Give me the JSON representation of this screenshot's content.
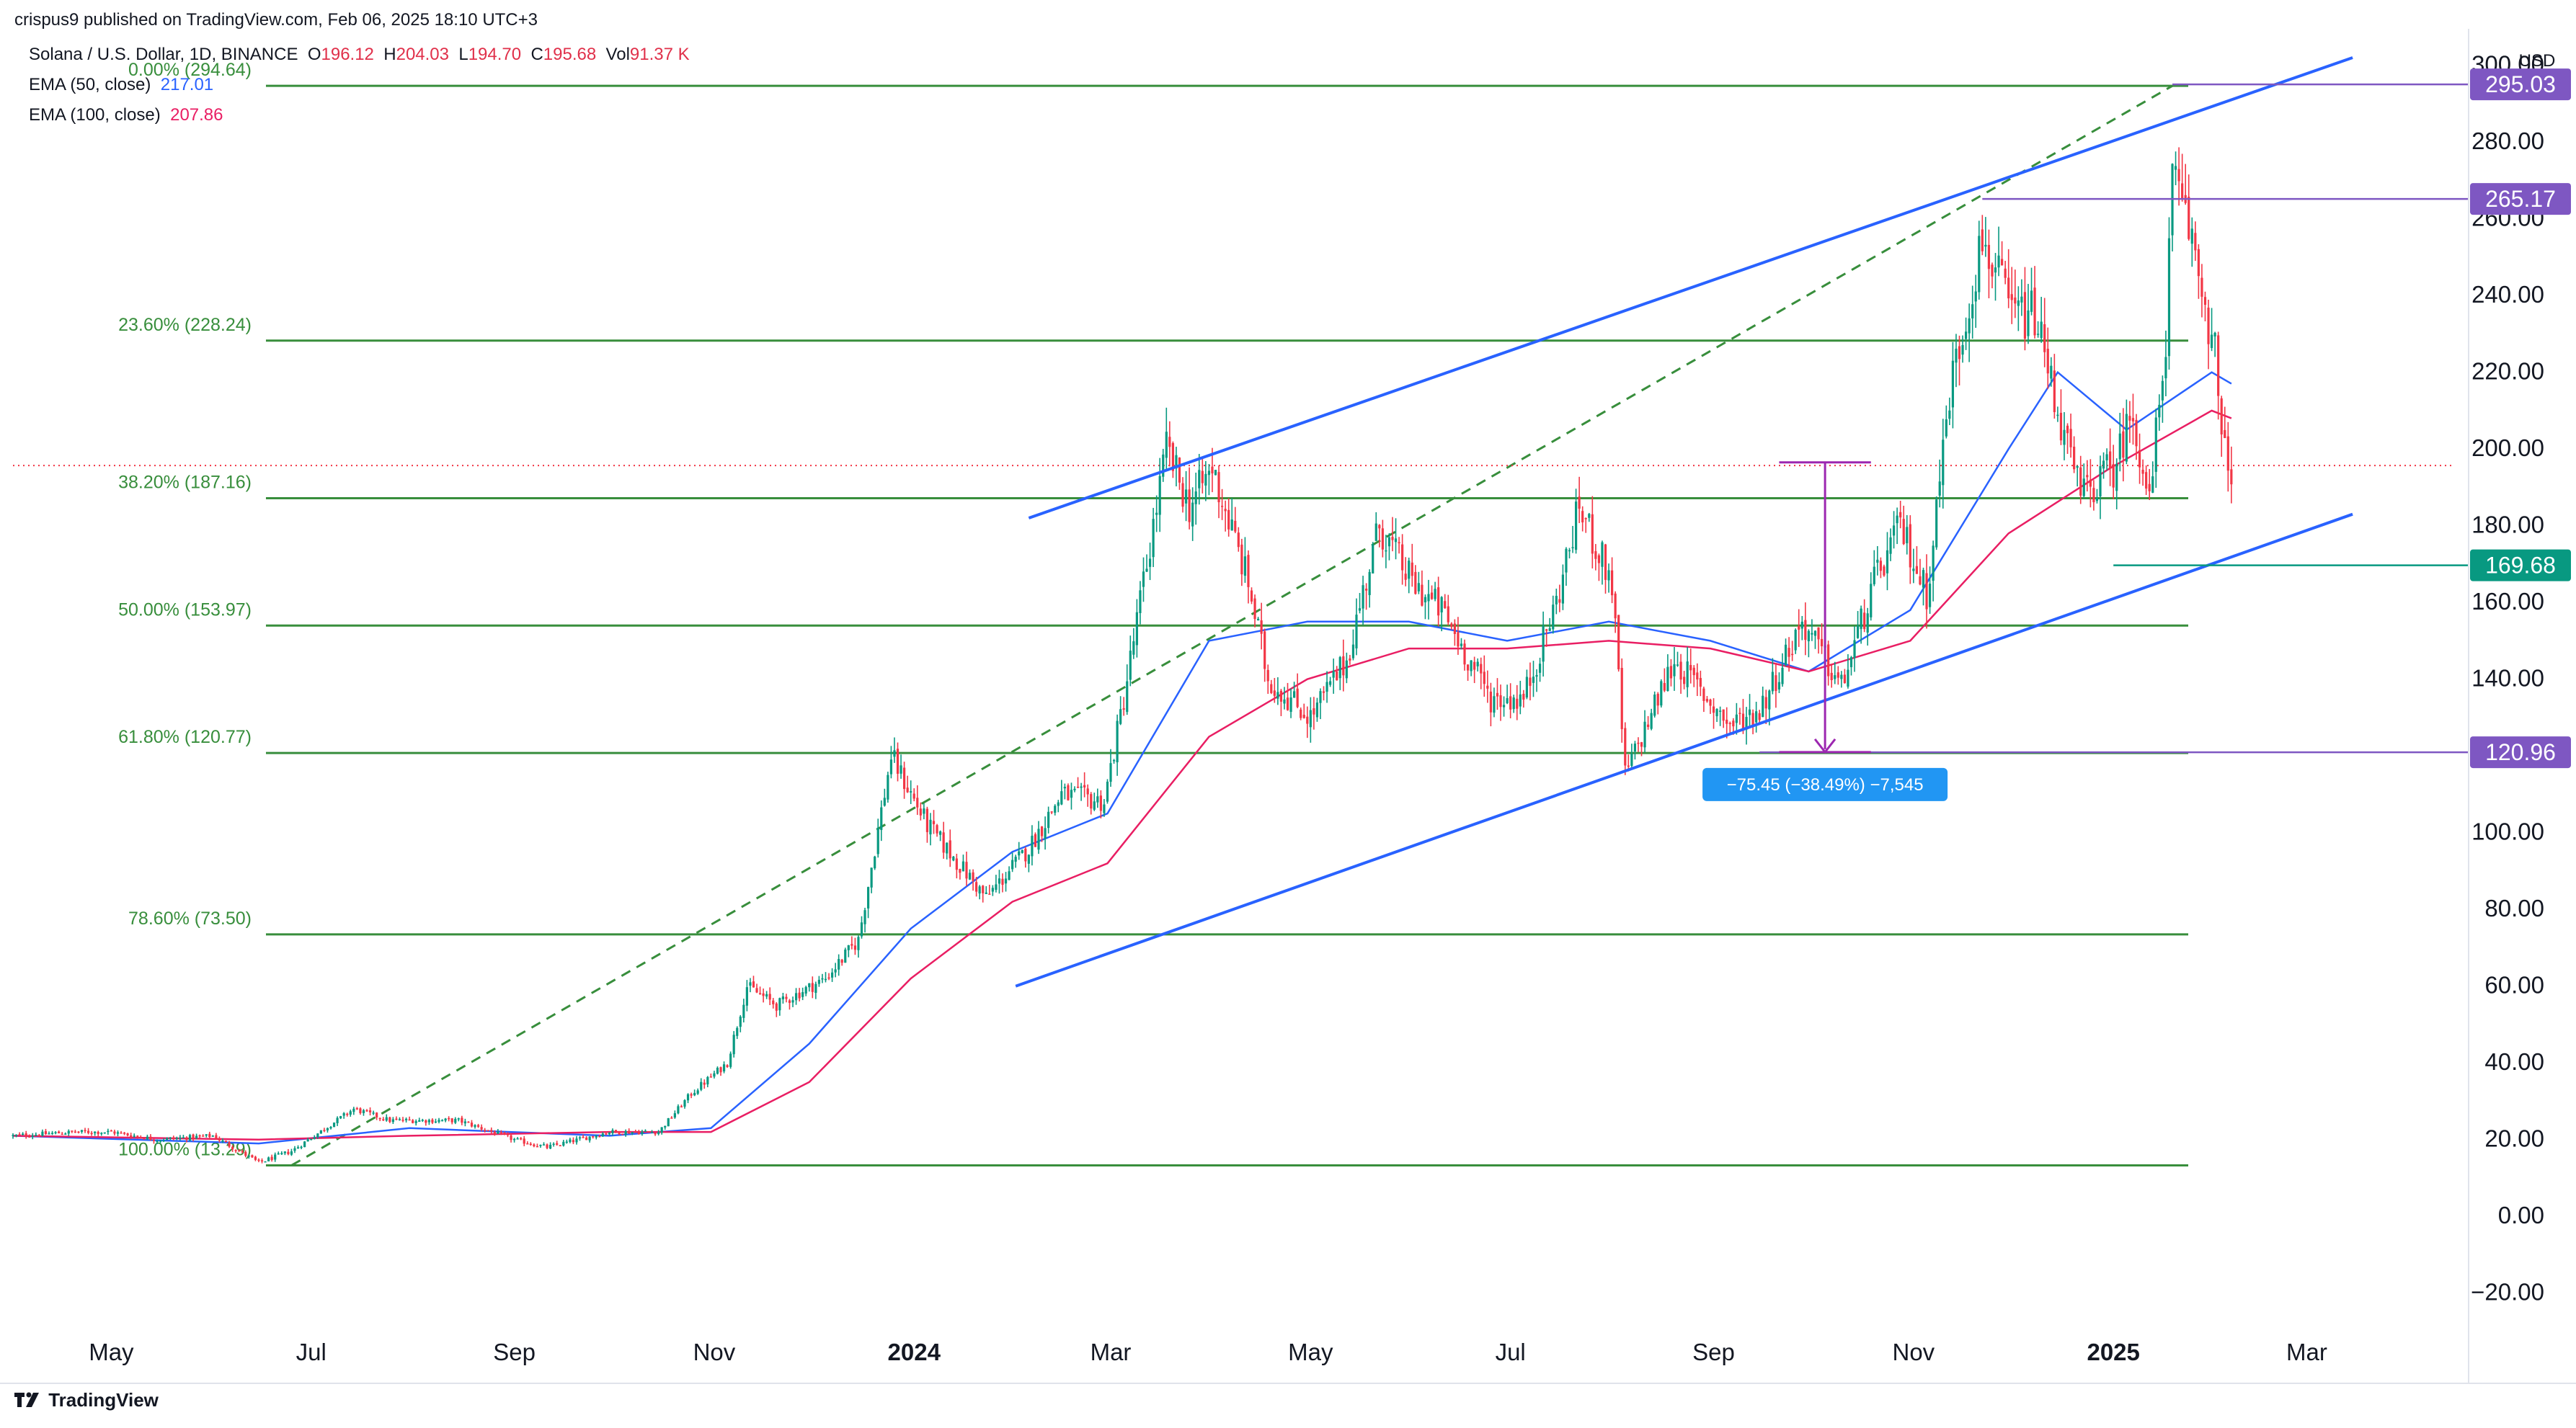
{
  "header": {
    "published": "crispus9 published on TradingView.com, Feb 06, 2025 18:10 UTC+3"
  },
  "legend": {
    "symbol": "Solana / U.S. Dollar, 1D, BINANCE",
    "o_label": "O",
    "o_val": "196.12",
    "h_label": "H",
    "h_val": "204.03",
    "l_label": "L",
    "l_val": "194.70",
    "c_label": "C",
    "c_val": "195.68",
    "vol_label": "Vol",
    "vol_val": "91.37 K",
    "ema50_label": "EMA (50, close)",
    "ema50_val": "217.01",
    "ema100_label": "EMA (100, close)",
    "ema100_val": "207.86"
  },
  "footer": {
    "brand": "TradingView"
  },
  "colors": {
    "up": "#089981",
    "down": "#f23645",
    "fib": "#388e3c",
    "channel": "#2962ff",
    "ema50": "#2962ff",
    "ema100": "#e91e63",
    "purple": "#7e57c2",
    "teal": "#089981",
    "measure": "#2196f3"
  },
  "chart_data": {
    "type": "candlestick",
    "title": "Solana / U.S. Dollar, 1D, BINANCE",
    "currency": "USD",
    "y_ticks": [
      "300.00",
      "280.00",
      "260.00",
      "240.00",
      "220.00",
      "200.00",
      "180.00",
      "160.00",
      "140.00",
      "120.00",
      "100.00",
      "80.00",
      "60.00",
      "40.00",
      "20.00",
      "0.00",
      "−20.00"
    ],
    "x_ticks": [
      {
        "label": "May",
        "bold": false
      },
      {
        "label": "Jul",
        "bold": false
      },
      {
        "label": "Sep",
        "bold": false
      },
      {
        "label": "Nov",
        "bold": false
      },
      {
        "label": "2024",
        "bold": true
      },
      {
        "label": "Mar",
        "bold": false
      },
      {
        "label": "May",
        "bold": false
      },
      {
        "label": "Jul",
        "bold": false
      },
      {
        "label": "Sep",
        "bold": false
      },
      {
        "label": "Nov",
        "bold": false
      },
      {
        "label": "2025",
        "bold": true
      },
      {
        "label": "Mar",
        "bold": false
      }
    ],
    "ylim": [
      -30,
      305
    ],
    "price_path": [
      [
        "2023-04-01",
        21
      ],
      [
        "2023-04-20",
        22
      ],
      [
        "2023-05-01",
        22
      ],
      [
        "2023-05-15",
        20
      ],
      [
        "2023-06-01",
        21
      ],
      [
        "2023-06-15",
        14
      ],
      [
        "2023-06-25",
        17
      ],
      [
        "2023-07-14",
        28
      ],
      [
        "2023-07-25",
        25
      ],
      [
        "2023-08-15",
        25
      ],
      [
        "2023-09-01",
        20
      ],
      [
        "2023-09-11",
        18
      ],
      [
        "2023-09-30",
        22
      ],
      [
        "2023-10-15",
        22
      ],
      [
        "2023-10-25",
        32
      ],
      [
        "2023-11-05",
        40
      ],
      [
        "2023-11-11",
        60
      ],
      [
        "2023-11-20",
        55
      ],
      [
        "2023-12-05",
        62
      ],
      [
        "2023-12-15",
        72
      ],
      [
        "2023-12-25",
        120
      ],
      [
        "2024-01-05",
        102
      ],
      [
        "2024-01-23",
        83
      ],
      [
        "2024-02-05",
        96
      ],
      [
        "2024-02-15",
        110
      ],
      [
        "2024-02-28",
        108
      ],
      [
        "2024-03-05",
        135
      ],
      [
        "2024-03-12",
        170
      ],
      [
        "2024-03-18",
        200
      ],
      [
        "2024-03-25",
        185
      ],
      [
        "2024-04-01",
        195
      ],
      [
        "2024-04-12",
        165
      ],
      [
        "2024-04-18",
        140
      ],
      [
        "2024-05-01",
        130
      ],
      [
        "2024-05-12",
        145
      ],
      [
        "2024-05-22",
        180
      ],
      [
        "2024-06-01",
        165
      ],
      [
        "2024-06-10",
        158
      ],
      [
        "2024-06-25",
        135
      ],
      [
        "2024-07-05",
        135
      ],
      [
        "2024-07-15",
        160
      ],
      [
        "2024-07-22",
        185
      ],
      [
        "2024-08-01",
        165
      ],
      [
        "2024-08-05",
        115
      ],
      [
        "2024-08-20",
        145
      ],
      [
        "2024-09-06",
        128
      ],
      [
        "2024-09-15",
        132
      ],
      [
        "2024-09-28",
        155
      ],
      [
        "2024-10-10",
        138
      ],
      [
        "2024-10-20",
        165
      ],
      [
        "2024-10-28",
        180
      ],
      [
        "2024-11-05",
        162
      ],
      [
        "2024-11-12",
        215
      ],
      [
        "2024-11-22",
        255
      ],
      [
        "2024-12-01",
        235
      ],
      [
        "2024-12-08",
        235
      ],
      [
        "2024-12-18",
        200
      ],
      [
        "2024-12-22",
        188
      ],
      [
        "2025-01-01",
        195
      ],
      [
        "2025-01-07",
        210
      ],
      [
        "2025-01-12",
        185
      ],
      [
        "2025-01-17",
        230
      ],
      [
        "2025-01-19",
        270
      ],
      [
        "2025-01-25",
        255
      ],
      [
        "2025-02-01",
        225
      ],
      [
        "2025-02-03",
        200
      ],
      [
        "2025-02-06",
        196
      ]
    ],
    "ema50": [
      [
        "2023-04-01",
        21
      ],
      [
        "2023-06-15",
        19
      ],
      [
        "2023-07-31",
        23
      ],
      [
        "2023-09-30",
        21
      ],
      [
        "2023-10-31",
        23
      ],
      [
        "2023-11-30",
        45
      ],
      [
        "2023-12-31",
        75
      ],
      [
        "2024-01-31",
        95
      ],
      [
        "2024-02-29",
        105
      ],
      [
        "2024-03-31",
        150
      ],
      [
        "2024-04-30",
        155
      ],
      [
        "2024-05-31",
        155
      ],
      [
        "2024-06-30",
        150
      ],
      [
        "2024-07-31",
        155
      ],
      [
        "2024-08-31",
        150
      ],
      [
        "2024-09-30",
        142
      ],
      [
        "2024-10-31",
        158
      ],
      [
        "2024-11-30",
        200
      ],
      [
        "2024-12-15",
        220
      ],
      [
        "2025-01-05",
        205
      ],
      [
        "2025-01-31",
        220
      ],
      [
        "2025-02-06",
        217
      ]
    ],
    "ema100": [
      [
        "2023-04-01",
        21
      ],
      [
        "2023-06-15",
        20
      ],
      [
        "2023-07-31",
        21
      ],
      [
        "2023-09-30",
        22
      ],
      [
        "2023-10-31",
        22
      ],
      [
        "2023-11-30",
        35
      ],
      [
        "2023-12-31",
        62
      ],
      [
        "2024-01-31",
        82
      ],
      [
        "2024-02-29",
        92
      ],
      [
        "2024-03-31",
        125
      ],
      [
        "2024-04-30",
        140
      ],
      [
        "2024-05-31",
        148
      ],
      [
        "2024-06-30",
        148
      ],
      [
        "2024-07-31",
        150
      ],
      [
        "2024-08-31",
        148
      ],
      [
        "2024-09-30",
        142
      ],
      [
        "2024-10-31",
        150
      ],
      [
        "2024-11-30",
        178
      ],
      [
        "2024-12-31",
        195
      ],
      [
        "2025-01-31",
        210
      ],
      [
        "2025-02-06",
        208
      ]
    ],
    "fib_levels": [
      {
        "label": "0.00% (294.64)",
        "value": 294.64
      },
      {
        "label": "23.60% (228.24)",
        "value": 228.24
      },
      {
        "label": "38.20% (187.16)",
        "value": 187.16
      },
      {
        "label": "50.00% (153.97)",
        "value": 153.97
      },
      {
        "label": "61.80% (120.77)",
        "value": 120.77
      },
      {
        "label": "78.60% (73.50)",
        "value": 73.5
      },
      {
        "label": "100.00% (13.29)",
        "value": 13.29
      }
    ],
    "fib_range": {
      "start": "2023-06-15",
      "end": "2025-01-19"
    },
    "fib_trend": {
      "from": [
        "2023-06-25",
        13.29
      ],
      "to": [
        "2025-01-19",
        294.64
      ]
    },
    "channel_upper": {
      "from": [
        "2024-02-05",
        182
      ],
      "to": [
        "2025-03-15",
        302
      ]
    },
    "channel_lower": {
      "from": [
        "2024-02-01",
        60
      ],
      "to": [
        "2025-03-15",
        183
      ]
    },
    "horizontal_lines": [
      {
        "value": 295.03,
        "from": "2025-01-19",
        "color": "purple"
      },
      {
        "value": 265.17,
        "from": "2024-11-22",
        "color": "purple"
      },
      {
        "value": 169.68,
        "from": "2025-01-01",
        "color": "teal"
      },
      {
        "value": 120.96,
        "from": "2024-09-15",
        "color": "purple"
      }
    ],
    "price_labels": [
      {
        "text": "295.03",
        "value": 295.03,
        "color": "purple"
      },
      {
        "text": "265.17",
        "value": 265.17,
        "color": "purple"
      },
      {
        "text": "169.68",
        "value": 169.68,
        "color": "teal"
      },
      {
        "text": "120.96",
        "value": 120.96,
        "color": "purple"
      }
    ],
    "current_price": 195.68,
    "measure": {
      "date": "2024-10-05",
      "top": 196.5,
      "bottom": 121,
      "half_width_days": 14,
      "label": "−75.45 (−38.49%) −7,545"
    }
  }
}
